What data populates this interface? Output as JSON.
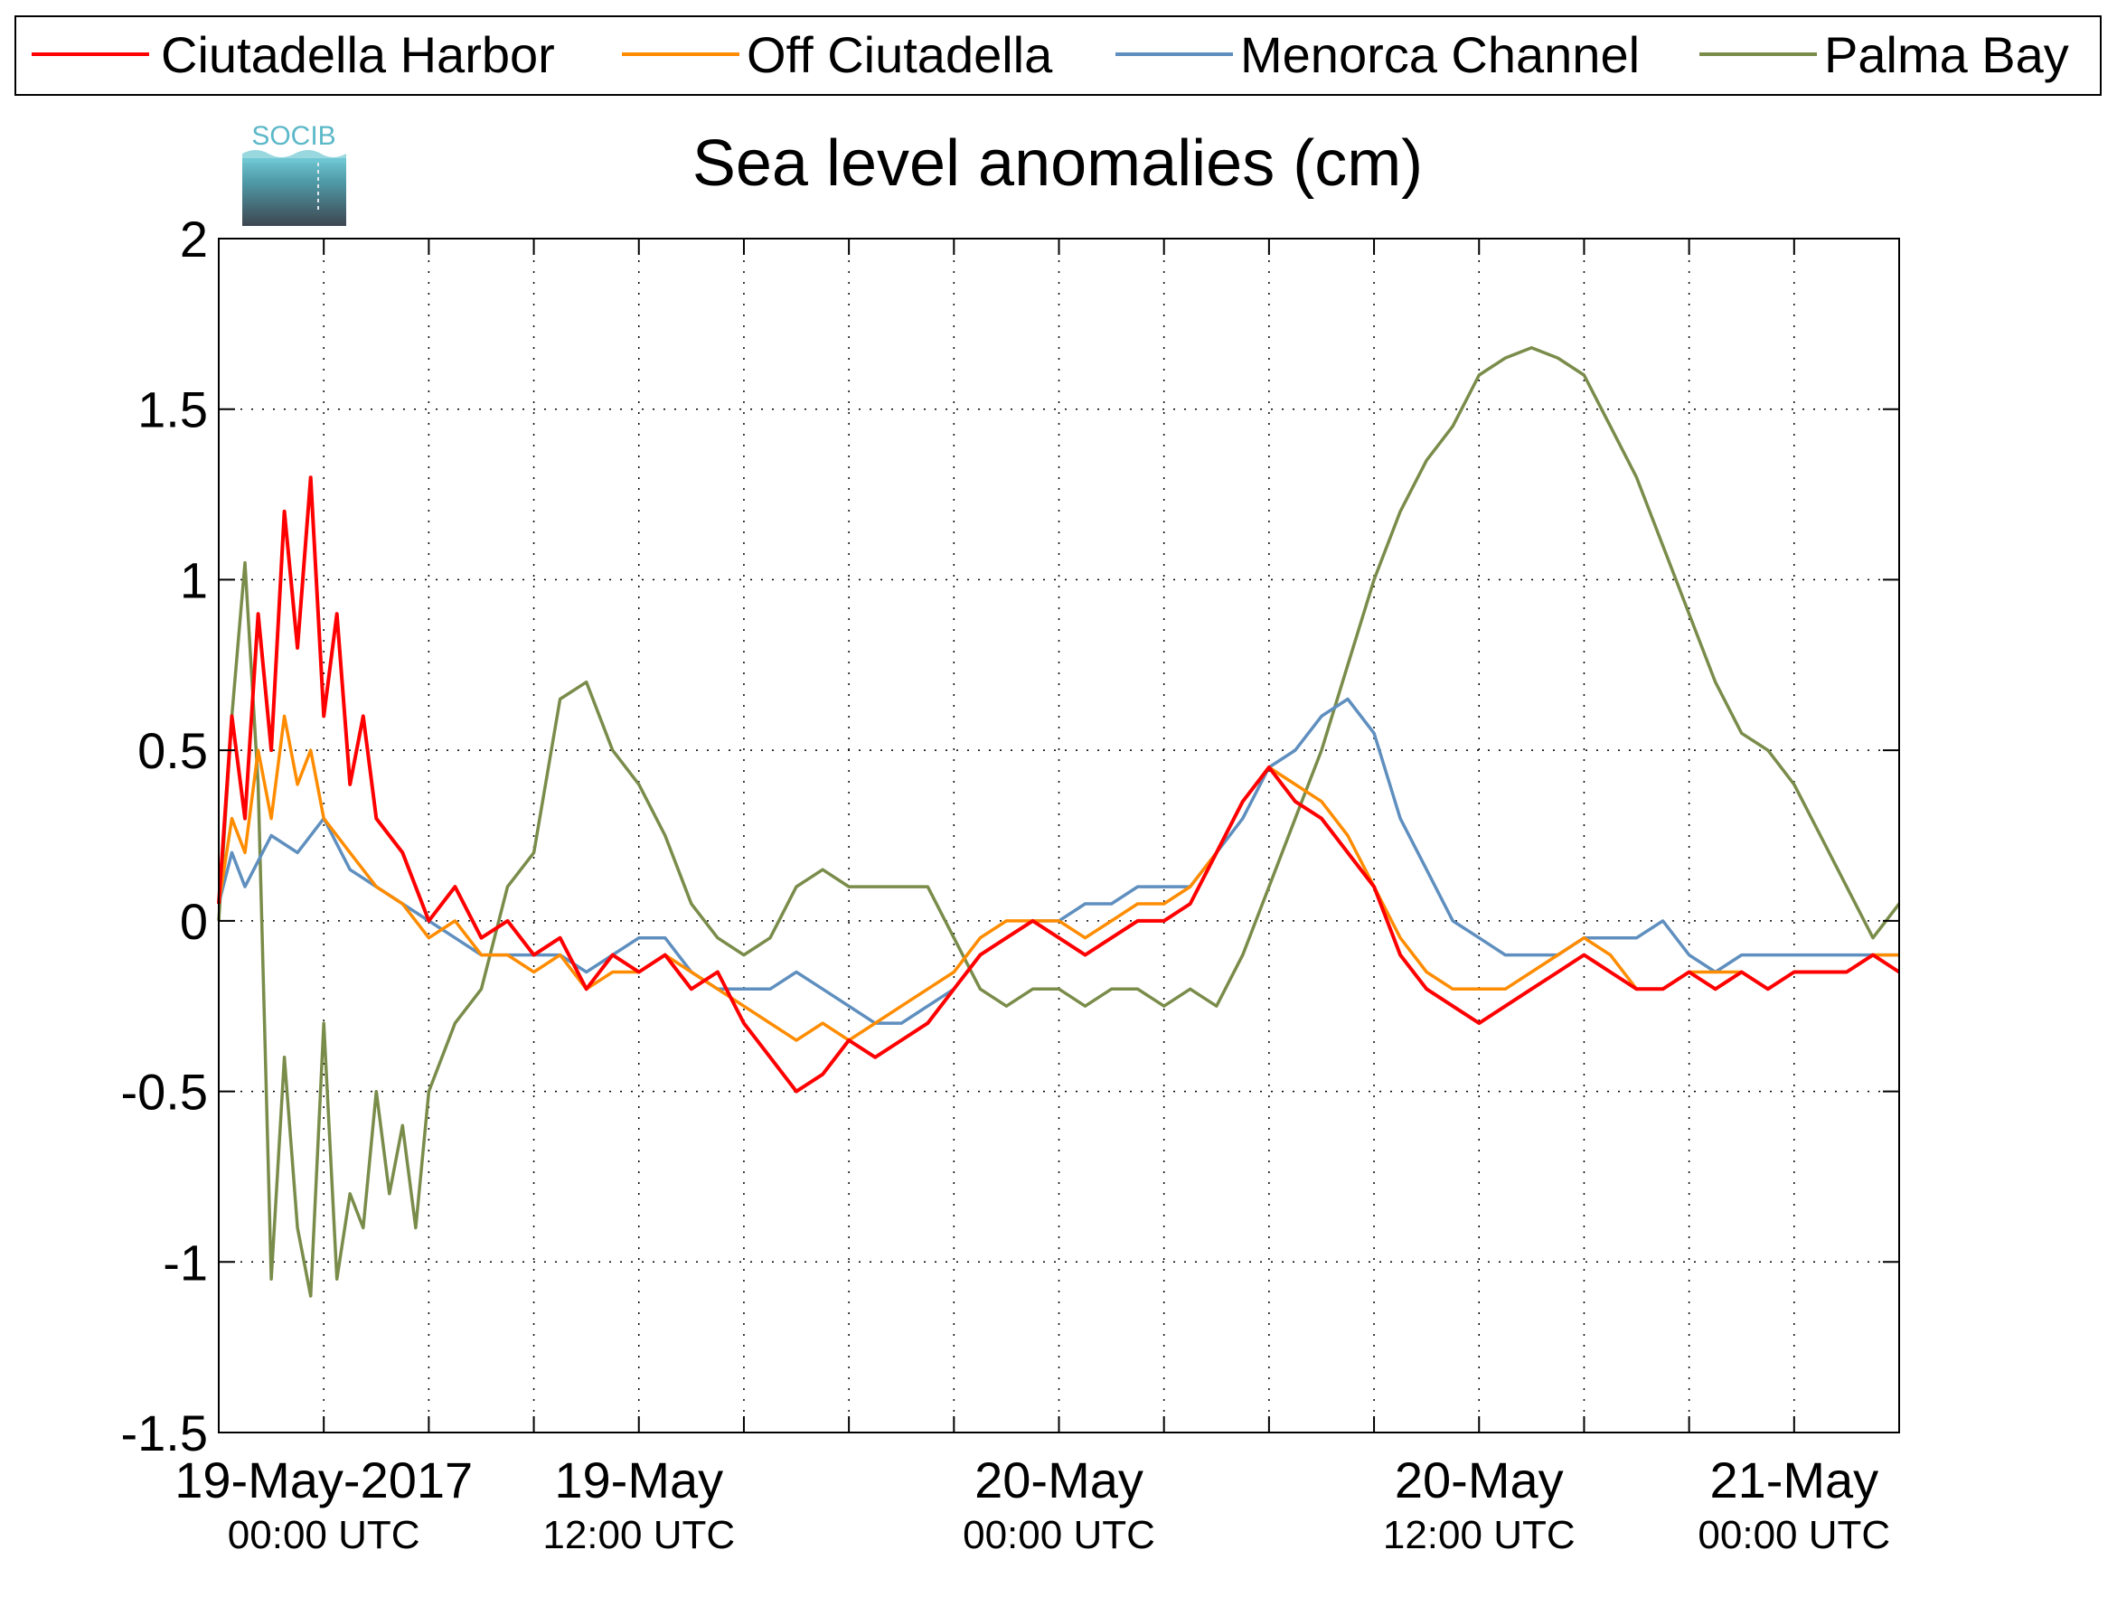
{
  "chart_data": {
    "type": "line",
    "title": "Sea level anomalies (cm)",
    "logo": "SOCIB",
    "ylim": [
      -1.5,
      2
    ],
    "yticks": [
      "2",
      "1.5",
      "1",
      "0.5",
      "0",
      "-0.5",
      "-1",
      "-1.5"
    ],
    "ytick_values": [
      2,
      1.5,
      1,
      0.5,
      0,
      -0.5,
      -1,
      -1.5
    ],
    "xlim_hours": [
      0,
      64
    ],
    "xticks": [
      {
        "line1": "19-May-2017",
        "line2": "00:00 UTC"
      },
      {
        "line1": "19-May",
        "line2": "12:00 UTC"
      },
      {
        "line1": "20-May",
        "line2": "00:00 UTC"
      },
      {
        "line1": "20-May",
        "line2": "12:00 UTC"
      },
      {
        "line1": "21-May",
        "line2": "00:00 UTC"
      }
    ],
    "xtick_hours": [
      4,
      16,
      32,
      48,
      60
    ],
    "minor_tick_hours": [
      8,
      12,
      20,
      24,
      28,
      36,
      40,
      44,
      52,
      56
    ],
    "grid": true,
    "legend_position": "top",
    "series": [
      {
        "name": "Ciutadella Harbor",
        "color": "#ff0000",
        "points": [
          [
            0,
            0.05
          ],
          [
            0.5,
            0.6
          ],
          [
            1,
            0.3
          ],
          [
            1.5,
            0.9
          ],
          [
            2,
            0.5
          ],
          [
            2.5,
            1.2
          ],
          [
            3,
            0.8
          ],
          [
            3.5,
            1.3
          ],
          [
            4,
            0.6
          ],
          [
            4.5,
            0.9
          ],
          [
            5,
            0.4
          ],
          [
            5.5,
            0.6
          ],
          [
            6,
            0.3
          ],
          [
            7,
            0.2
          ],
          [
            8,
            0.0
          ],
          [
            9,
            0.1
          ],
          [
            10,
            -0.05
          ],
          [
            11,
            0.0
          ],
          [
            12,
            -0.1
          ],
          [
            13,
            -0.05
          ],
          [
            14,
            -0.2
          ],
          [
            15,
            -0.1
          ],
          [
            16,
            -0.15
          ],
          [
            17,
            -0.1
          ],
          [
            18,
            -0.2
          ],
          [
            19,
            -0.15
          ],
          [
            20,
            -0.3
          ],
          [
            21,
            -0.4
          ],
          [
            22,
            -0.5
          ],
          [
            23,
            -0.45
          ],
          [
            24,
            -0.35
          ],
          [
            25,
            -0.4
          ],
          [
            26,
            -0.35
          ],
          [
            27,
            -0.3
          ],
          [
            28,
            -0.2
          ],
          [
            29,
            -0.1
          ],
          [
            30,
            -0.05
          ],
          [
            31,
            0.0
          ],
          [
            32,
            -0.05
          ],
          [
            33,
            -0.1
          ],
          [
            34,
            -0.05
          ],
          [
            35,
            0.0
          ],
          [
            36,
            0.0
          ],
          [
            37,
            0.05
          ],
          [
            38,
            0.2
          ],
          [
            39,
            0.35
          ],
          [
            40,
            0.45
          ],
          [
            41,
            0.35
          ],
          [
            42,
            0.3
          ],
          [
            43,
            0.2
          ],
          [
            44,
            0.1
          ],
          [
            45,
            -0.1
          ],
          [
            46,
            -0.2
          ],
          [
            47,
            -0.25
          ],
          [
            48,
            -0.3
          ],
          [
            49,
            -0.25
          ],
          [
            50,
            -0.2
          ],
          [
            51,
            -0.15
          ],
          [
            52,
            -0.1
          ],
          [
            53,
            -0.15
          ],
          [
            54,
            -0.2
          ],
          [
            55,
            -0.2
          ],
          [
            56,
            -0.15
          ],
          [
            57,
            -0.2
          ],
          [
            58,
            -0.15
          ],
          [
            59,
            -0.2
          ],
          [
            60,
            -0.15
          ],
          [
            61,
            -0.15
          ],
          [
            62,
            -0.15
          ],
          [
            63,
            -0.1
          ],
          [
            64,
            -0.15
          ]
        ]
      },
      {
        "name": "Off Ciutadella",
        "color": "#ff8c00",
        "points": [
          [
            0,
            0.05
          ],
          [
            0.5,
            0.3
          ],
          [
            1,
            0.2
          ],
          [
            1.5,
            0.5
          ],
          [
            2,
            0.3
          ],
          [
            2.5,
            0.6
          ],
          [
            3,
            0.4
          ],
          [
            3.5,
            0.5
          ],
          [
            4,
            0.3
          ],
          [
            5,
            0.2
          ],
          [
            6,
            0.1
          ],
          [
            7,
            0.05
          ],
          [
            8,
            -0.05
          ],
          [
            9,
            0.0
          ],
          [
            10,
            -0.1
          ],
          [
            11,
            -0.1
          ],
          [
            12,
            -0.15
          ],
          [
            13,
            -0.1
          ],
          [
            14,
            -0.2
          ],
          [
            15,
            -0.15
          ],
          [
            16,
            -0.15
          ],
          [
            17,
            -0.1
          ],
          [
            18,
            -0.15
          ],
          [
            19,
            -0.2
          ],
          [
            20,
            -0.25
          ],
          [
            21,
            -0.3
          ],
          [
            22,
            -0.35
          ],
          [
            23,
            -0.3
          ],
          [
            24,
            -0.35
          ],
          [
            25,
            -0.3
          ],
          [
            26,
            -0.25
          ],
          [
            27,
            -0.2
          ],
          [
            28,
            -0.15
          ],
          [
            29,
            -0.05
          ],
          [
            30,
            0.0
          ],
          [
            31,
            0.0
          ],
          [
            32,
            0.0
          ],
          [
            33,
            -0.05
          ],
          [
            34,
            0.0
          ],
          [
            35,
            0.05
          ],
          [
            36,
            0.05
          ],
          [
            37,
            0.1
          ],
          [
            38,
            0.2
          ],
          [
            39,
            0.35
          ],
          [
            40,
            0.45
          ],
          [
            41,
            0.4
          ],
          [
            42,
            0.35
          ],
          [
            43,
            0.25
          ],
          [
            44,
            0.1
          ],
          [
            45,
            -0.05
          ],
          [
            46,
            -0.15
          ],
          [
            47,
            -0.2
          ],
          [
            48,
            -0.2
          ],
          [
            49,
            -0.2
          ],
          [
            50,
            -0.15
          ],
          [
            51,
            -0.1
          ],
          [
            52,
            -0.05
          ],
          [
            53,
            -0.1
          ],
          [
            54,
            -0.2
          ],
          [
            55,
            -0.2
          ],
          [
            56,
            -0.15
          ],
          [
            57,
            -0.15
          ],
          [
            58,
            -0.15
          ],
          [
            59,
            -0.2
          ],
          [
            60,
            -0.15
          ],
          [
            61,
            -0.15
          ],
          [
            62,
            -0.15
          ],
          [
            63,
            -0.1
          ],
          [
            64,
            -0.1
          ]
        ]
      },
      {
        "name": "Menorca Channel",
        "color": "#5f8fbf",
        "points": [
          [
            0,
            0.05
          ],
          [
            0.5,
            0.2
          ],
          [
            1,
            0.1
          ],
          [
            2,
            0.25
          ],
          [
            3,
            0.2
          ],
          [
            4,
            0.3
          ],
          [
            5,
            0.15
          ],
          [
            6,
            0.1
          ],
          [
            7,
            0.05
          ],
          [
            8,
            0.0
          ],
          [
            9,
            -0.05
          ],
          [
            10,
            -0.1
          ],
          [
            11,
            -0.1
          ],
          [
            12,
            -0.1
          ],
          [
            13,
            -0.1
          ],
          [
            14,
            -0.15
          ],
          [
            15,
            -0.1
          ],
          [
            16,
            -0.05
          ],
          [
            17,
            -0.05
          ],
          [
            18,
            -0.15
          ],
          [
            19,
            -0.2
          ],
          [
            20,
            -0.2
          ],
          [
            21,
            -0.2
          ],
          [
            22,
            -0.15
          ],
          [
            23,
            -0.2
          ],
          [
            24,
            -0.25
          ],
          [
            25,
            -0.3
          ],
          [
            26,
            -0.3
          ],
          [
            27,
            -0.25
          ],
          [
            28,
            -0.2
          ],
          [
            29,
            -0.1
          ],
          [
            30,
            -0.05
          ],
          [
            31,
            0.0
          ],
          [
            32,
            0.0
          ],
          [
            33,
            0.05
          ],
          [
            34,
            0.05
          ],
          [
            35,
            0.1
          ],
          [
            36,
            0.1
          ],
          [
            37,
            0.1
          ],
          [
            38,
            0.2
          ],
          [
            39,
            0.3
          ],
          [
            40,
            0.45
          ],
          [
            41,
            0.5
          ],
          [
            42,
            0.6
          ],
          [
            43,
            0.65
          ],
          [
            44,
            0.55
          ],
          [
            45,
            0.3
          ],
          [
            46,
            0.15
          ],
          [
            47,
            0.0
          ],
          [
            48,
            -0.05
          ],
          [
            49,
            -0.1
          ],
          [
            50,
            -0.1
          ],
          [
            51,
            -0.1
          ],
          [
            52,
            -0.05
          ],
          [
            53,
            -0.05
          ],
          [
            54,
            -0.05
          ],
          [
            55,
            0.0
          ],
          [
            56,
            -0.1
          ],
          [
            57,
            -0.15
          ],
          [
            58,
            -0.1
          ],
          [
            59,
            -0.1
          ],
          [
            60,
            -0.1
          ],
          [
            61,
            -0.1
          ],
          [
            62,
            -0.1
          ],
          [
            63,
            -0.1
          ],
          [
            64,
            -0.1
          ]
        ]
      },
      {
        "name": "Palma Bay",
        "color": "#7a8c4a",
        "points": [
          [
            0,
            0.0
          ],
          [
            0.5,
            0.6
          ],
          [
            1,
            1.05
          ],
          [
            1.5,
            0.4
          ],
          [
            2,
            -1.05
          ],
          [
            2.5,
            -0.4
          ],
          [
            3,
            -0.9
          ],
          [
            3.5,
            -1.1
          ],
          [
            4,
            -0.3
          ],
          [
            4.5,
            -1.05
          ],
          [
            5,
            -0.8
          ],
          [
            5.5,
            -0.9
          ],
          [
            6,
            -0.5
          ],
          [
            6.5,
            -0.8
          ],
          [
            7,
            -0.6
          ],
          [
            7.5,
            -0.9
          ],
          [
            8,
            -0.5
          ],
          [
            9,
            -0.3
          ],
          [
            10,
            -0.2
          ],
          [
            11,
            0.1
          ],
          [
            12,
            0.2
          ],
          [
            13,
            0.65
          ],
          [
            14,
            0.7
          ],
          [
            15,
            0.5
          ],
          [
            16,
            0.4
          ],
          [
            17,
            0.25
          ],
          [
            18,
            0.05
          ],
          [
            19,
            -0.05
          ],
          [
            20,
            -0.1
          ],
          [
            21,
            -0.05
          ],
          [
            22,
            0.1
          ],
          [
            23,
            0.15
          ],
          [
            24,
            0.1
          ],
          [
            25,
            0.1
          ],
          [
            26,
            0.1
          ],
          [
            27,
            0.1
          ],
          [
            28,
            -0.05
          ],
          [
            29,
            -0.2
          ],
          [
            30,
            -0.25
          ],
          [
            31,
            -0.2
          ],
          [
            32,
            -0.2
          ],
          [
            33,
            -0.25
          ],
          [
            34,
            -0.2
          ],
          [
            35,
            -0.2
          ],
          [
            36,
            -0.25
          ],
          [
            37,
            -0.2
          ],
          [
            38,
            -0.25
          ],
          [
            39,
            -0.1
          ],
          [
            40,
            0.1
          ],
          [
            41,
            0.3
          ],
          [
            42,
            0.5
          ],
          [
            43,
            0.75
          ],
          [
            44,
            1.0
          ],
          [
            45,
            1.2
          ],
          [
            46,
            1.35
          ],
          [
            47,
            1.45
          ],
          [
            48,
            1.6
          ],
          [
            49,
            1.65
          ],
          [
            50,
            1.68
          ],
          [
            51,
            1.65
          ],
          [
            52,
            1.6
          ],
          [
            53,
            1.45
          ],
          [
            54,
            1.3
          ],
          [
            55,
            1.1
          ],
          [
            56,
            0.9
          ],
          [
            57,
            0.7
          ],
          [
            58,
            0.55
          ],
          [
            59,
            0.5
          ],
          [
            60,
            0.4
          ],
          [
            61,
            0.25
          ],
          [
            62,
            0.1
          ],
          [
            63,
            -0.05
          ],
          [
            64,
            0.05
          ]
        ]
      }
    ]
  }
}
